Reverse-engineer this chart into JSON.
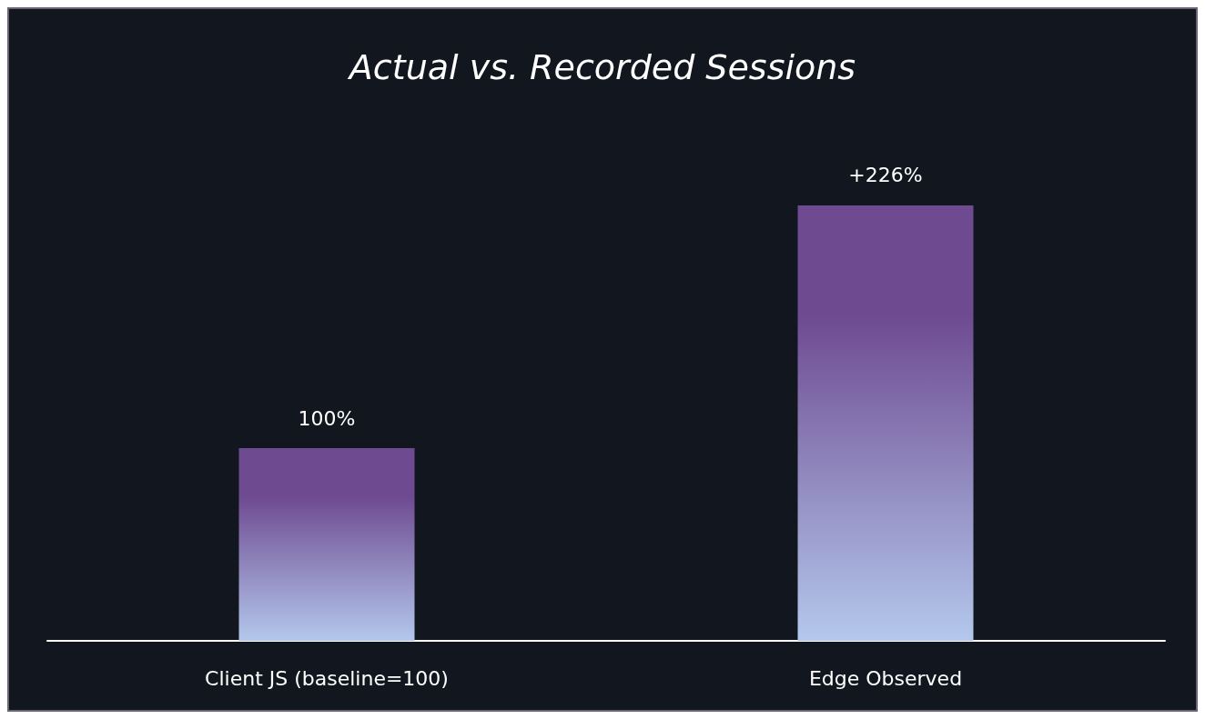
{
  "chart_data": {
    "type": "bar",
    "title": "Actual vs. Recorded Sessions",
    "categories": [
      "Client JS (baseline=100)",
      "Edge Observed"
    ],
    "values": [
      100,
      226
    ],
    "value_labels": [
      "100%",
      "+226%"
    ],
    "color": "#6e4a91"
  }
}
